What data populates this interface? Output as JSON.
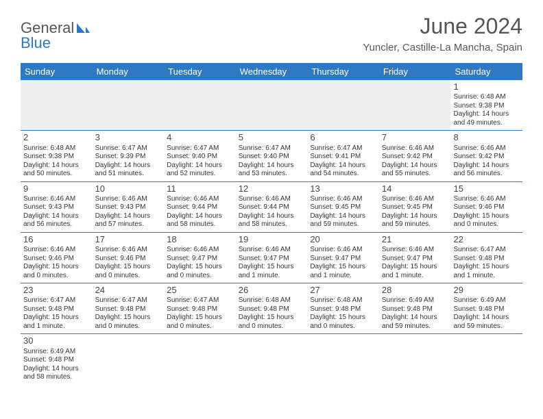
{
  "header": {
    "logo_part1": "General",
    "logo_part2": "Blue",
    "month_title": "June 2024",
    "location": "Yuncler, Castille-La Mancha, Spain"
  },
  "colors": {
    "brand_blue": "#2f78c2",
    "text": "#333333",
    "header_text": "#555555",
    "empty_bg": "#eeeeee",
    "white": "#ffffff"
  },
  "day_names": [
    "Sunday",
    "Monday",
    "Tuesday",
    "Wednesday",
    "Thursday",
    "Friday",
    "Saturday"
  ],
  "weeks": [
    [
      {
        "empty": true
      },
      {
        "empty": true
      },
      {
        "empty": true
      },
      {
        "empty": true
      },
      {
        "empty": true
      },
      {
        "empty": true
      },
      {
        "num": "1",
        "sunrise": "Sunrise: 6:48 AM",
        "sunset": "Sunset: 9:38 PM",
        "daylight1": "Daylight: 14 hours",
        "daylight2": "and 49 minutes."
      }
    ],
    [
      {
        "num": "2",
        "sunrise": "Sunrise: 6:48 AM",
        "sunset": "Sunset: 9:38 PM",
        "daylight1": "Daylight: 14 hours",
        "daylight2": "and 50 minutes."
      },
      {
        "num": "3",
        "sunrise": "Sunrise: 6:47 AM",
        "sunset": "Sunset: 9:39 PM",
        "daylight1": "Daylight: 14 hours",
        "daylight2": "and 51 minutes."
      },
      {
        "num": "4",
        "sunrise": "Sunrise: 6:47 AM",
        "sunset": "Sunset: 9:40 PM",
        "daylight1": "Daylight: 14 hours",
        "daylight2": "and 52 minutes."
      },
      {
        "num": "5",
        "sunrise": "Sunrise: 6:47 AM",
        "sunset": "Sunset: 9:40 PM",
        "daylight1": "Daylight: 14 hours",
        "daylight2": "and 53 minutes."
      },
      {
        "num": "6",
        "sunrise": "Sunrise: 6:47 AM",
        "sunset": "Sunset: 9:41 PM",
        "daylight1": "Daylight: 14 hours",
        "daylight2": "and 54 minutes."
      },
      {
        "num": "7",
        "sunrise": "Sunrise: 6:46 AM",
        "sunset": "Sunset: 9:42 PM",
        "daylight1": "Daylight: 14 hours",
        "daylight2": "and 55 minutes."
      },
      {
        "num": "8",
        "sunrise": "Sunrise: 6:46 AM",
        "sunset": "Sunset: 9:42 PM",
        "daylight1": "Daylight: 14 hours",
        "daylight2": "and 56 minutes."
      }
    ],
    [
      {
        "num": "9",
        "sunrise": "Sunrise: 6:46 AM",
        "sunset": "Sunset: 9:43 PM",
        "daylight1": "Daylight: 14 hours",
        "daylight2": "and 56 minutes."
      },
      {
        "num": "10",
        "sunrise": "Sunrise: 6:46 AM",
        "sunset": "Sunset: 9:43 PM",
        "daylight1": "Daylight: 14 hours",
        "daylight2": "and 57 minutes."
      },
      {
        "num": "11",
        "sunrise": "Sunrise: 6:46 AM",
        "sunset": "Sunset: 9:44 PM",
        "daylight1": "Daylight: 14 hours",
        "daylight2": "and 58 minutes."
      },
      {
        "num": "12",
        "sunrise": "Sunrise: 6:46 AM",
        "sunset": "Sunset: 9:44 PM",
        "daylight1": "Daylight: 14 hours",
        "daylight2": "and 58 minutes."
      },
      {
        "num": "13",
        "sunrise": "Sunrise: 6:46 AM",
        "sunset": "Sunset: 9:45 PM",
        "daylight1": "Daylight: 14 hours",
        "daylight2": "and 59 minutes."
      },
      {
        "num": "14",
        "sunrise": "Sunrise: 6:46 AM",
        "sunset": "Sunset: 9:45 PM",
        "daylight1": "Daylight: 14 hours",
        "daylight2": "and 59 minutes."
      },
      {
        "num": "15",
        "sunrise": "Sunrise: 6:46 AM",
        "sunset": "Sunset: 9:46 PM",
        "daylight1": "Daylight: 15 hours",
        "daylight2": "and 0 minutes."
      }
    ],
    [
      {
        "num": "16",
        "sunrise": "Sunrise: 6:46 AM",
        "sunset": "Sunset: 9:46 PM",
        "daylight1": "Daylight: 15 hours",
        "daylight2": "and 0 minutes."
      },
      {
        "num": "17",
        "sunrise": "Sunrise: 6:46 AM",
        "sunset": "Sunset: 9:46 PM",
        "daylight1": "Daylight: 15 hours",
        "daylight2": "and 0 minutes."
      },
      {
        "num": "18",
        "sunrise": "Sunrise: 6:46 AM",
        "sunset": "Sunset: 9:47 PM",
        "daylight1": "Daylight: 15 hours",
        "daylight2": "and 0 minutes."
      },
      {
        "num": "19",
        "sunrise": "Sunrise: 6:46 AM",
        "sunset": "Sunset: 9:47 PM",
        "daylight1": "Daylight: 15 hours",
        "daylight2": "and 1 minute."
      },
      {
        "num": "20",
        "sunrise": "Sunrise: 6:46 AM",
        "sunset": "Sunset: 9:47 PM",
        "daylight1": "Daylight: 15 hours",
        "daylight2": "and 1 minute."
      },
      {
        "num": "21",
        "sunrise": "Sunrise: 6:46 AM",
        "sunset": "Sunset: 9:47 PM",
        "daylight1": "Daylight: 15 hours",
        "daylight2": "and 1 minute."
      },
      {
        "num": "22",
        "sunrise": "Sunrise: 6:47 AM",
        "sunset": "Sunset: 9:48 PM",
        "daylight1": "Daylight: 15 hours",
        "daylight2": "and 1 minute."
      }
    ],
    [
      {
        "num": "23",
        "sunrise": "Sunrise: 6:47 AM",
        "sunset": "Sunset: 9:48 PM",
        "daylight1": "Daylight: 15 hours",
        "daylight2": "and 1 minute."
      },
      {
        "num": "24",
        "sunrise": "Sunrise: 6:47 AM",
        "sunset": "Sunset: 9:48 PM",
        "daylight1": "Daylight: 15 hours",
        "daylight2": "and 0 minutes."
      },
      {
        "num": "25",
        "sunrise": "Sunrise: 6:47 AM",
        "sunset": "Sunset: 9:48 PM",
        "daylight1": "Daylight: 15 hours",
        "daylight2": "and 0 minutes."
      },
      {
        "num": "26",
        "sunrise": "Sunrise: 6:48 AM",
        "sunset": "Sunset: 9:48 PM",
        "daylight1": "Daylight: 15 hours",
        "daylight2": "and 0 minutes."
      },
      {
        "num": "27",
        "sunrise": "Sunrise: 6:48 AM",
        "sunset": "Sunset: 9:48 PM",
        "daylight1": "Daylight: 15 hours",
        "daylight2": "and 0 minutes."
      },
      {
        "num": "28",
        "sunrise": "Sunrise: 6:49 AM",
        "sunset": "Sunset: 9:48 PM",
        "daylight1": "Daylight: 14 hours",
        "daylight2": "and 59 minutes."
      },
      {
        "num": "29",
        "sunrise": "Sunrise: 6:49 AM",
        "sunset": "Sunset: 9:48 PM",
        "daylight1": "Daylight: 14 hours",
        "daylight2": "and 59 minutes."
      }
    ],
    [
      {
        "num": "30",
        "sunrise": "Sunrise: 6:49 AM",
        "sunset": "Sunset: 9:48 PM",
        "daylight1": "Daylight: 14 hours",
        "daylight2": "and 58 minutes."
      },
      {
        "blank": true
      },
      {
        "blank": true
      },
      {
        "blank": true
      },
      {
        "blank": true
      },
      {
        "blank": true
      },
      {
        "blank": true
      }
    ]
  ]
}
